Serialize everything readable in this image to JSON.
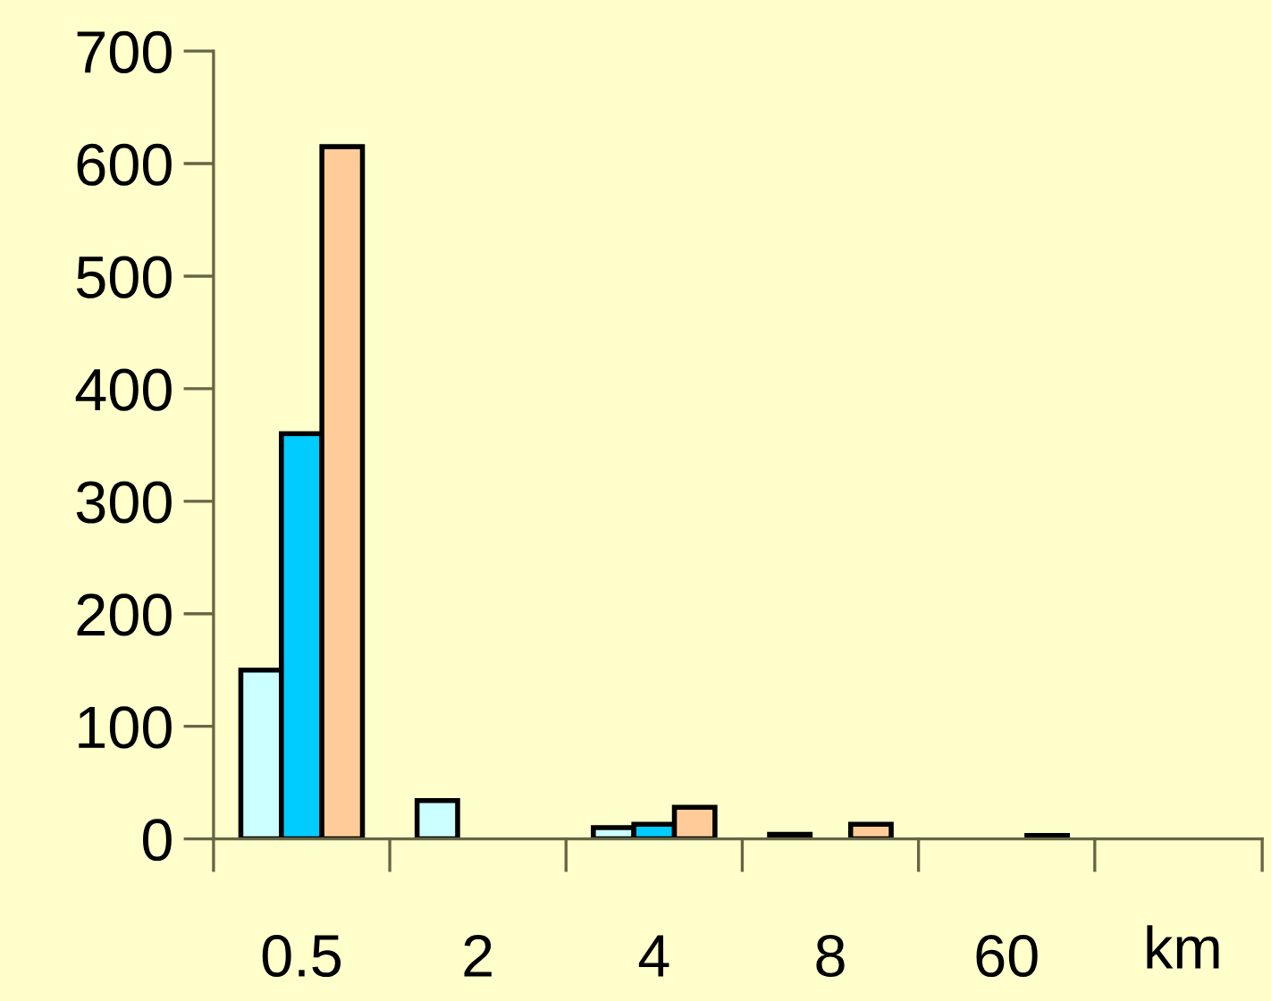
{
  "chart_data": {
    "type": "bar",
    "categories": [
      "0.5",
      "2",
      "4",
      "8",
      "60"
    ],
    "xlabel": "km",
    "series": [
      {
        "color": "#ccffff",
        "values": [
          150,
          34,
          10,
          4,
          null
        ]
      },
      {
        "color": "#00ccff",
        "values": [
          360,
          null,
          13,
          null,
          null
        ]
      },
      {
        "color": "#ffcc99",
        "values": [
          615,
          null,
          28,
          13,
          3
        ]
      }
    ],
    "ylim": [
      0,
      700
    ],
    "yticks": [
      0,
      100,
      200,
      300,
      400,
      500,
      600,
      700
    ],
    "grid": false,
    "legend": false
  }
}
